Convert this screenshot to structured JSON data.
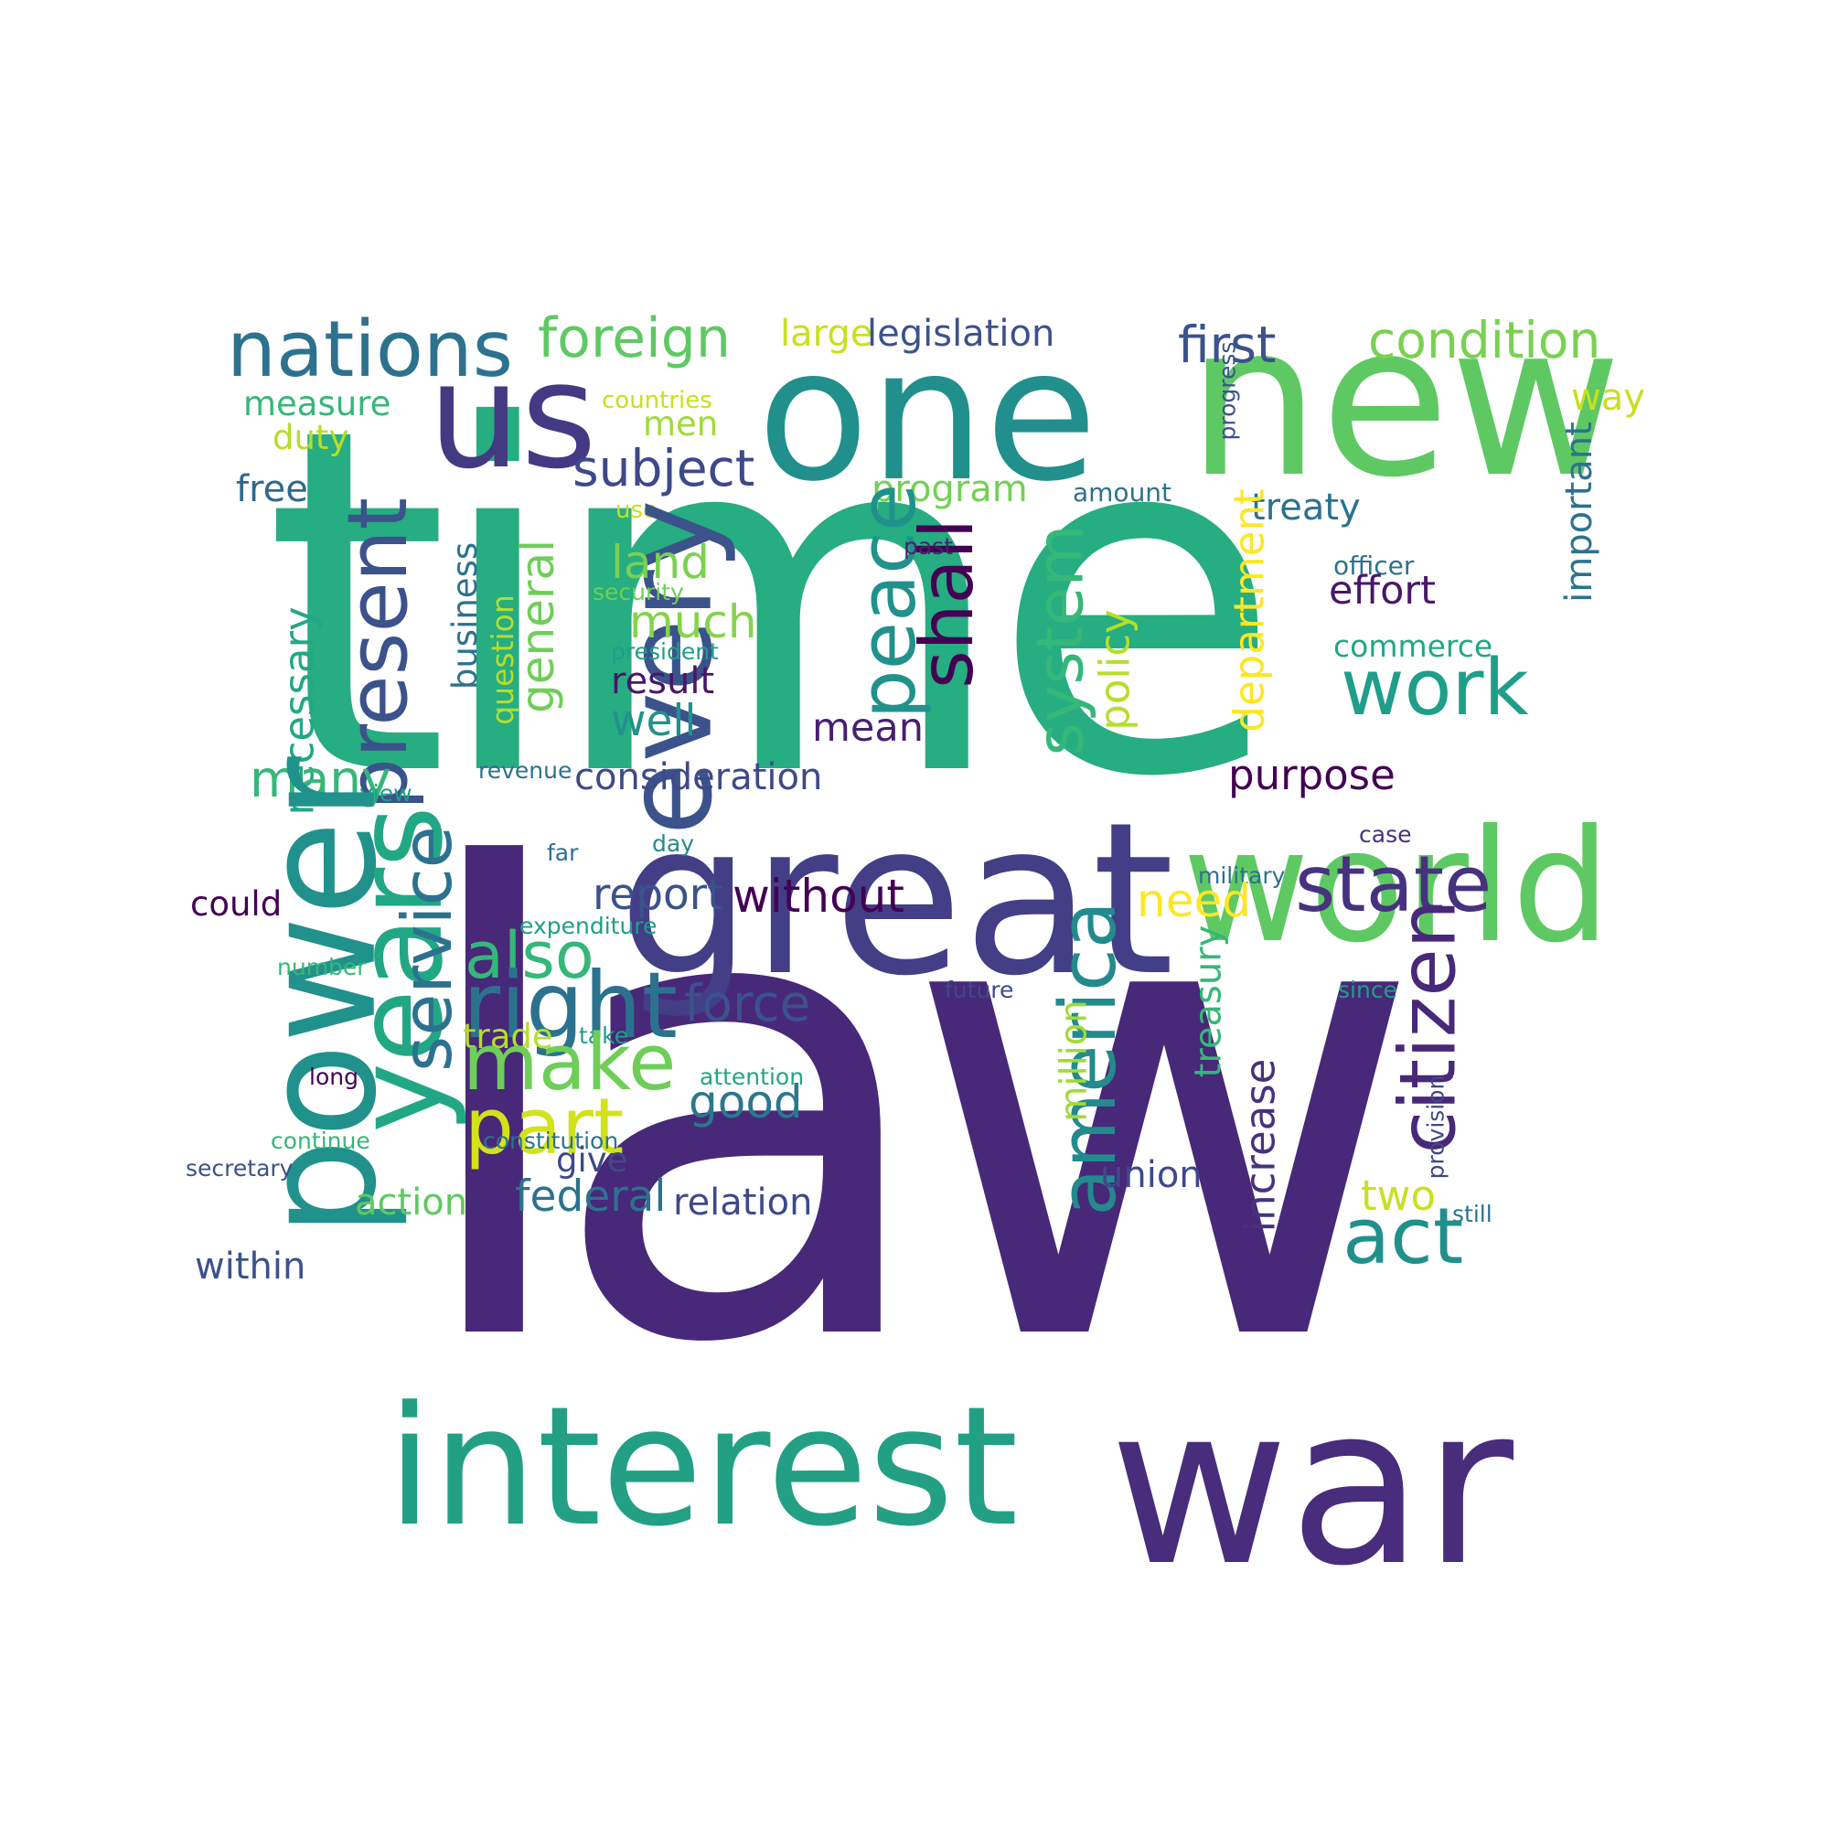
{
  "words": {
    "law": "law",
    "time": "time",
    "great": "great",
    "war": "war",
    "interest": "interest",
    "new": "new",
    "one": "one",
    "us": "us",
    "world": "world",
    "nations": "nations",
    "foreign": "foreign",
    "large": "large",
    "legislation": "legislation",
    "first": "first",
    "condition": "condition",
    "measure": "measure",
    "countries": "countries",
    "men": "men",
    "duty": "duty",
    "way": "way",
    "progress": "progress",
    "subject": "subject",
    "program": "program",
    "amount": "amount",
    "important": "important",
    "free": "free",
    "treaty": "treaty",
    "use": "use",
    "every": "every",
    "peace": "peace",
    "shall": "shall",
    "past": "past",
    "land": "land",
    "security": "security",
    "much": "much",
    "president": "president",
    "result": "result",
    "well": "well",
    "mean": "mean",
    "present": "present",
    "business": "business",
    "general": "general",
    "question": "question",
    "necessary": "necessary",
    "system": "system",
    "policy": "policy",
    "department": "department",
    "officer": "officer",
    "effort": "effort",
    "commerce": "commerce",
    "work": "work",
    "many": "many",
    "revenue": "revenue",
    "consideration": "consideration",
    "purpose": "purpose",
    "view": "view",
    "power": "power",
    "years": "years",
    "service": "service",
    "day": "day",
    "case": "case",
    "far": "far",
    "military": "military",
    "report": "report",
    "without": "without",
    "need": "need",
    "state": "state",
    "could": "could",
    "expenditure": "expenditure",
    "also": "also",
    "number": "number",
    "future": "future",
    "since": "since",
    "right": "right",
    "force": "force",
    "america": "america",
    "treasury": "treasury",
    "citizen": "citizen",
    "trade": "trade",
    "take": "take",
    "make": "make",
    "million": "million",
    "long": "long",
    "attention": "attention",
    "provision": "provision",
    "part": "part",
    "good": "good",
    "increase": "increase",
    "continue": "continue",
    "constitution": "constitution",
    "give": "give",
    "secretary": "secretary",
    "union": "union",
    "federal": "federal",
    "action": "action",
    "relation": "relation",
    "two": "two",
    "still": "still",
    "act": "act",
    "within": "within"
  },
  "colors": {
    "background": "#ffffff",
    "palette": "viridis"
  }
}
